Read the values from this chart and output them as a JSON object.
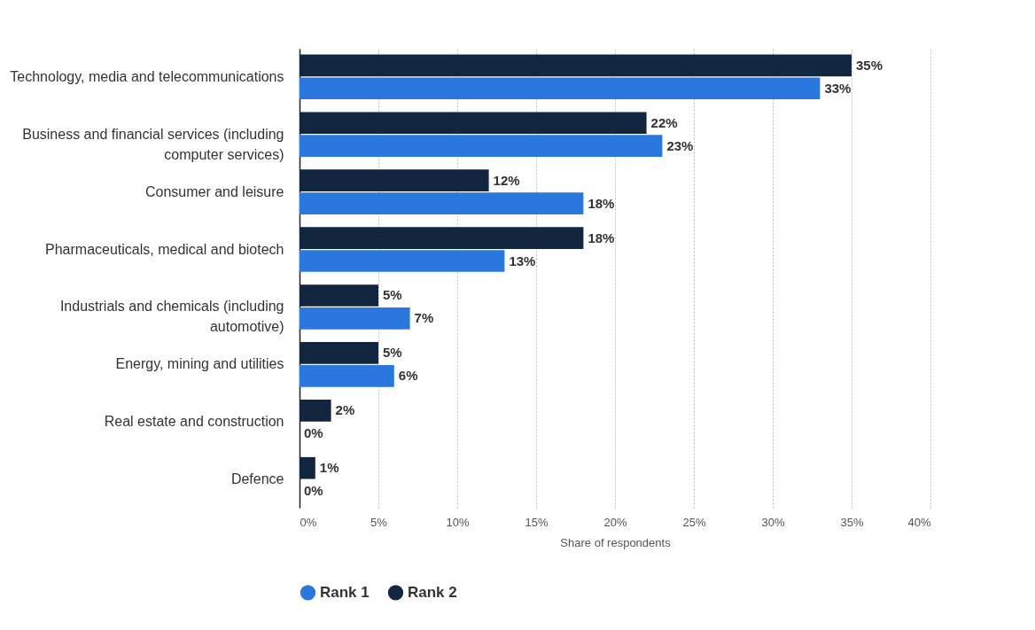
{
  "chart_data": {
    "type": "bar",
    "orientation": "horizontal",
    "xlabel": "Share of respondents",
    "categories": [
      "Technology, media and telecommunications",
      "Business and financial services (including computer services)",
      "Consumer and leisure",
      "Pharmaceuticals, medical and biotech",
      "Industrials and chemicals (including automotive)",
      "Energy, mining and utilities",
      "Real estate and construction",
      "Defence"
    ],
    "series": [
      {
        "name": "Rank 1",
        "color": "#2a77de",
        "values": [
          33,
          23,
          18,
          13,
          7,
          6,
          0,
          0
        ],
        "value_labels": [
          "33%",
          "23%",
          "18%",
          "13%",
          "7%",
          "6%",
          "0%",
          "0%"
        ]
      },
      {
        "name": "Rank 2",
        "color": "#12263f",
        "values": [
          35,
          22,
          12,
          18,
          5,
          5,
          2,
          1
        ],
        "value_labels": [
          "35%",
          "22%",
          "12%",
          "18%",
          "5%",
          "5%",
          "2%",
          "1%"
        ]
      }
    ],
    "xlim": [
      0,
      40
    ],
    "xticks": [
      {
        "value": 0,
        "label": "0%"
      },
      {
        "value": 5,
        "label": "5%"
      },
      {
        "value": 10,
        "label": "10%"
      },
      {
        "value": 15,
        "label": "15%"
      },
      {
        "value": 20,
        "label": "20%"
      },
      {
        "value": 25,
        "label": "25%"
      },
      {
        "value": 30,
        "label": "30%"
      },
      {
        "value": 35,
        "label": "35%"
      },
      {
        "value": 40,
        "label": "40%"
      }
    ],
    "grid": "x",
    "legend": "bottom"
  }
}
